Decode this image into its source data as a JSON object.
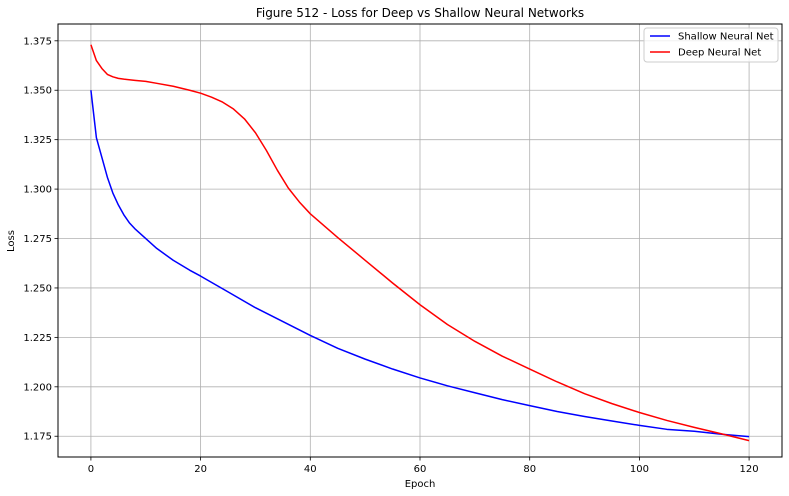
{
  "chart_data": {
    "type": "line",
    "title": "Figure 512 - Loss for Deep vs Shallow Neural Networks",
    "xlabel": "Epoch",
    "ylabel": "Loss",
    "xlim": [
      -6,
      126
    ],
    "ylim": [
      1.1645,
      1.3835
    ],
    "x_ticks": [
      0,
      20,
      40,
      60,
      80,
      100,
      120
    ],
    "x_tick_labels": [
      "0",
      "20",
      "40",
      "60",
      "80",
      "100",
      "120"
    ],
    "y_ticks": [
      1.175,
      1.2,
      1.225,
      1.25,
      1.275,
      1.3,
      1.325,
      1.35,
      1.375
    ],
    "y_tick_labels": [
      "1.175",
      "1.200",
      "1.225",
      "1.250",
      "1.275",
      "1.300",
      "1.325",
      "1.350",
      "1.375"
    ],
    "grid": true,
    "legend_position": "top-right",
    "series": [
      {
        "name": "Shallow Neural Net",
        "color": "#0000ff",
        "x": [
          0,
          1,
          2,
          3,
          4,
          5,
          6,
          7,
          8,
          10,
          12,
          15,
          18,
          20,
          25,
          30,
          35,
          40,
          45,
          50,
          55,
          60,
          65,
          70,
          75,
          80,
          85,
          90,
          95,
          100,
          105,
          110,
          115,
          120
        ],
        "y": [
          1.35,
          1.326,
          1.316,
          1.306,
          1.298,
          1.292,
          1.287,
          1.283,
          1.28,
          1.275,
          1.27,
          1.264,
          1.259,
          1.256,
          1.248,
          1.24,
          1.233,
          1.226,
          1.2195,
          1.214,
          1.209,
          1.2045,
          1.2005,
          1.197,
          1.1935,
          1.1905,
          1.1875,
          1.185,
          1.1827,
          1.1805,
          1.1785,
          1.1775,
          1.176,
          1.1748
        ]
      },
      {
        "name": "Deep Neural Net",
        "color": "#ff0000",
        "x": [
          0,
          1,
          2,
          3,
          4,
          5,
          6,
          8,
          10,
          12,
          15,
          18,
          20,
          22,
          24,
          26,
          28,
          30,
          32,
          34,
          36,
          38,
          40,
          45,
          50,
          55,
          60,
          65,
          70,
          75,
          80,
          85,
          90,
          95,
          100,
          105,
          110,
          115,
          120
        ],
        "y": [
          1.373,
          1.365,
          1.361,
          1.358,
          1.3568,
          1.356,
          1.3556,
          1.355,
          1.3545,
          1.3535,
          1.352,
          1.35,
          1.3485,
          1.3465,
          1.344,
          1.3405,
          1.3355,
          1.3285,
          1.3195,
          1.3095,
          1.3005,
          1.2935,
          1.2875,
          1.2755,
          1.264,
          1.2525,
          1.2415,
          1.2315,
          1.223,
          1.2155,
          1.209,
          1.2025,
          1.1965,
          1.1915,
          1.187,
          1.183,
          1.1795,
          1.1762,
          1.1728
        ]
      }
    ]
  }
}
